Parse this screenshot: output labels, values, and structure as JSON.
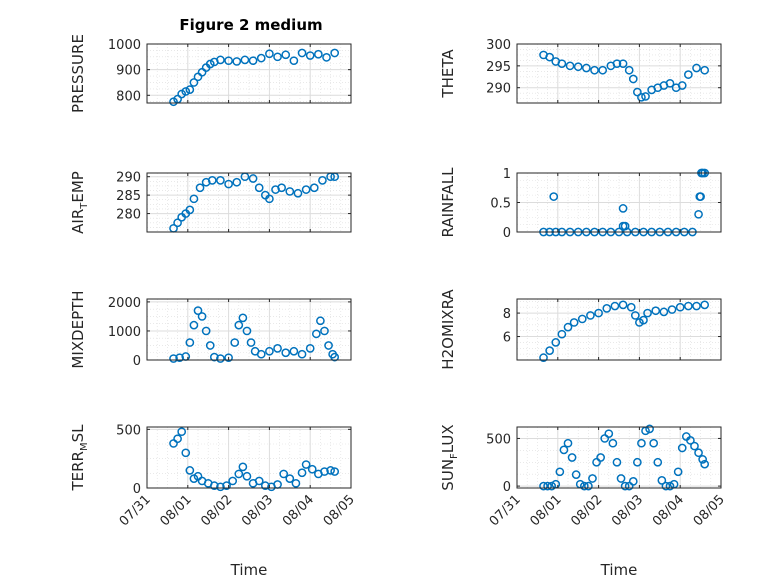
{
  "figure": {
    "title": "Figure 2 medium"
  },
  "colors": {
    "marker": "#0072BD",
    "axis": "#262626",
    "grid": "#dcdcdc",
    "background": "#ffffff"
  },
  "chart_data": [
    {
      "type": "scatter",
      "title": "Figure 2 medium",
      "xlabel": "",
      "ylabel": "PRESSURE",
      "xlim": [
        "07/31",
        "08/05"
      ],
      "ylim": [
        770,
        1000
      ],
      "yticks": [
        800,
        900,
        1000
      ],
      "xticklabels": [],
      "grid": true,
      "series": [
        {
          "x": [
            0.65,
            0.75,
            0.85,
            0.95,
            1.05,
            1.15,
            1.25,
            1.35,
            1.45,
            1.55,
            1.65,
            1.8,
            2.0,
            2.2,
            2.4,
            2.6,
            2.8,
            3.0,
            3.2,
            3.4,
            3.6,
            3.8,
            4.0,
            4.2,
            4.4,
            4.6
          ],
          "y": [
            775,
            785,
            805,
            815,
            822,
            850,
            872,
            890,
            908,
            922,
            930,
            938,
            935,
            932,
            938,
            935,
            945,
            962,
            950,
            958,
            935,
            965,
            955,
            960,
            948,
            965
          ]
        }
      ]
    },
    {
      "type": "scatter",
      "title": "",
      "xlabel": "",
      "ylabel": "THETA",
      "xlim": [
        "07/31",
        "08/05"
      ],
      "ylim": [
        286.5,
        300
      ],
      "yticks": [
        290,
        295,
        300
      ],
      "xticklabels": [],
      "grid": true,
      "series": [
        {
          "x": [
            0.65,
            0.8,
            0.95,
            1.1,
            1.3,
            1.5,
            1.7,
            1.9,
            2.1,
            2.3,
            2.45,
            2.6,
            2.75,
            2.85,
            2.95,
            3.05,
            3.15,
            3.3,
            3.45,
            3.6,
            3.75,
            3.9,
            4.05,
            4.2,
            4.4,
            4.6
          ],
          "y": [
            297.5,
            297,
            296,
            295.5,
            295,
            294.8,
            294.5,
            294,
            294,
            295,
            295.5,
            295.5,
            294,
            292,
            289,
            287.8,
            288,
            289.5,
            290,
            290.5,
            291,
            290,
            290.5,
            293,
            294.5,
            294
          ]
        }
      ]
    },
    {
      "type": "scatter",
      "title": "",
      "xlabel": "",
      "ylabel": "AIR_TEMP",
      "xlim": [
        "07/31",
        "08/05"
      ],
      "ylim": [
        275,
        291
      ],
      "yticks": [
        280,
        285,
        290
      ],
      "xticklabels": [],
      "grid": true,
      "series": [
        {
          "x": [
            0.65,
            0.75,
            0.85,
            0.95,
            1.05,
            1.15,
            1.3,
            1.45,
            1.6,
            1.8,
            2.0,
            2.2,
            2.4,
            2.6,
            2.75,
            2.9,
            3.0,
            3.15,
            3.3,
            3.5,
            3.7,
            3.9,
            4.1,
            4.3,
            4.5,
            4.6
          ],
          "y": [
            276,
            277.5,
            279,
            280,
            281,
            284,
            287,
            288.5,
            289,
            289,
            288,
            288.5,
            290,
            289.5,
            287,
            285,
            284,
            286.5,
            287,
            286,
            285.5,
            286.5,
            287,
            289,
            290,
            290
          ]
        }
      ]
    },
    {
      "type": "scatter",
      "title": "",
      "xlabel": "",
      "ylabel": "RAINFALL",
      "xlim": [
        "07/31",
        "08/05"
      ],
      "ylim": [
        0,
        1
      ],
      "yticks": [
        0,
        0.5,
        1
      ],
      "xticklabels": [],
      "grid": true,
      "series": [
        {
          "x": [
            0.65,
            0.8,
            0.95,
            1.1,
            1.3,
            1.5,
            1.7,
            1.9,
            2.1,
            2.3,
            2.5,
            2.6,
            2.7,
            2.9,
            3.1,
            3.3,
            3.5,
            3.7,
            3.9,
            4.1,
            4.3,
            4.45,
            4.5,
            4.55,
            4.6,
            0.9,
            2.6,
            2.65,
            4.48,
            4.52
          ],
          "y": [
            0,
            0,
            0,
            0,
            0,
            0,
            0,
            0,
            0,
            0,
            0,
            0.1,
            0,
            0,
            0,
            0,
            0,
            0,
            0,
            0,
            0,
            0.3,
            0.6,
            1,
            1,
            0.6,
            0.4,
            0.1,
            0.6,
            1
          ]
        }
      ]
    },
    {
      "type": "scatter",
      "title": "",
      "xlabel": "",
      "ylabel": "MIXDEPTH",
      "xlim": [
        "07/31",
        "08/05"
      ],
      "ylim": [
        0,
        2100
      ],
      "yticks": [
        0,
        1000,
        2000
      ],
      "xticklabels": [],
      "grid": true,
      "series": [
        {
          "x": [
            0.65,
            0.8,
            0.95,
            1.05,
            1.15,
            1.25,
            1.35,
            1.45,
            1.55,
            1.65,
            1.8,
            2.0,
            2.15,
            2.25,
            2.35,
            2.45,
            2.55,
            2.65,
            2.8,
            3.0,
            3.2,
            3.4,
            3.6,
            3.8,
            4.0,
            4.15,
            4.25,
            4.35,
            4.45,
            4.55,
            4.6
          ],
          "y": [
            50,
            80,
            120,
            600,
            1200,
            1700,
            1500,
            1000,
            500,
            100,
            50,
            80,
            600,
            1200,
            1450,
            1000,
            600,
            300,
            200,
            300,
            400,
            250,
            300,
            200,
            400,
            900,
            1350,
            1000,
            500,
            200,
            100
          ]
        }
      ]
    },
    {
      "type": "scatter",
      "title": "",
      "xlabel": "",
      "ylabel": "H2OMIXRA",
      "xlim": [
        "07/31",
        "08/05"
      ],
      "ylim": [
        4,
        9.2
      ],
      "yticks": [
        6,
        8
      ],
      "xticklabels": [],
      "grid": true,
      "series": [
        {
          "x": [
            0.65,
            0.8,
            0.95,
            1.1,
            1.25,
            1.4,
            1.6,
            1.8,
            2.0,
            2.2,
            2.4,
            2.6,
            2.8,
            2.9,
            3.0,
            3.1,
            3.2,
            3.4,
            3.6,
            3.8,
            4.0,
            4.2,
            4.4,
            4.6
          ],
          "y": [
            4.2,
            4.8,
            5.5,
            6.2,
            6.8,
            7.2,
            7.5,
            7.8,
            8.0,
            8.4,
            8.6,
            8.7,
            8.5,
            7.8,
            7.2,
            7.4,
            8.0,
            8.2,
            8.1,
            8.3,
            8.5,
            8.6,
            8.6,
            8.7
          ]
        }
      ]
    },
    {
      "type": "scatter",
      "title": "",
      "xlabel": "Time",
      "ylabel": "TERR_MSL",
      "xlim": [
        "07/31",
        "08/05"
      ],
      "ylim": [
        0,
        520
      ],
      "yticks": [
        0,
        500
      ],
      "xticklabels": [
        "07/31",
        "08/01",
        "08/02",
        "08/03",
        "08/04",
        "08/05"
      ],
      "grid": true,
      "series": [
        {
          "x": [
            0.65,
            0.75,
            0.85,
            0.95,
            1.05,
            1.15,
            1.25,
            1.35,
            1.5,
            1.65,
            1.8,
            1.95,
            2.1,
            2.25,
            2.35,
            2.45,
            2.6,
            2.75,
            2.9,
            3.05,
            3.2,
            3.35,
            3.5,
            3.65,
            3.8,
            3.9,
            4.05,
            4.2,
            4.35,
            4.5,
            4.6
          ],
          "y": [
            380,
            420,
            480,
            300,
            150,
            80,
            100,
            60,
            40,
            20,
            10,
            20,
            60,
            120,
            180,
            100,
            40,
            60,
            20,
            10,
            30,
            120,
            80,
            40,
            130,
            200,
            160,
            120,
            140,
            150,
            140
          ]
        }
      ]
    },
    {
      "type": "scatter",
      "title": "",
      "xlabel": "Time",
      "ylabel": "SUN_FLUX",
      "xlim": [
        "07/31",
        "08/05"
      ],
      "ylim": [
        -20,
        620
      ],
      "yticks": [
        0,
        500
      ],
      "xticklabels": [
        "07/31",
        "08/01",
        "08/02",
        "08/03",
        "08/04",
        "08/05"
      ],
      "grid": true,
      "series": [
        {
          "x": [
            0.65,
            0.75,
            0.85,
            0.95,
            1.05,
            1.15,
            1.25,
            1.35,
            1.45,
            1.55,
            1.65,
            1.75,
            1.85,
            1.95,
            2.05,
            2.15,
            2.25,
            2.35,
            2.45,
            2.55,
            2.65,
            2.75,
            2.85,
            2.95,
            3.05,
            3.15,
            3.25,
            3.35,
            3.45,
            3.55,
            3.65,
            3.75,
            3.85,
            3.95,
            4.05,
            4.15,
            4.25,
            4.35,
            4.45,
            4.55,
            4.6
          ],
          "y": [
            0,
            0,
            0,
            20,
            150,
            380,
            450,
            300,
            120,
            20,
            0,
            0,
            80,
            250,
            300,
            500,
            550,
            450,
            250,
            80,
            0,
            0,
            50,
            250,
            450,
            580,
            600,
            450,
            250,
            60,
            0,
            0,
            20,
            150,
            400,
            520,
            480,
            420,
            350,
            280,
            230
          ]
        }
      ]
    }
  ]
}
